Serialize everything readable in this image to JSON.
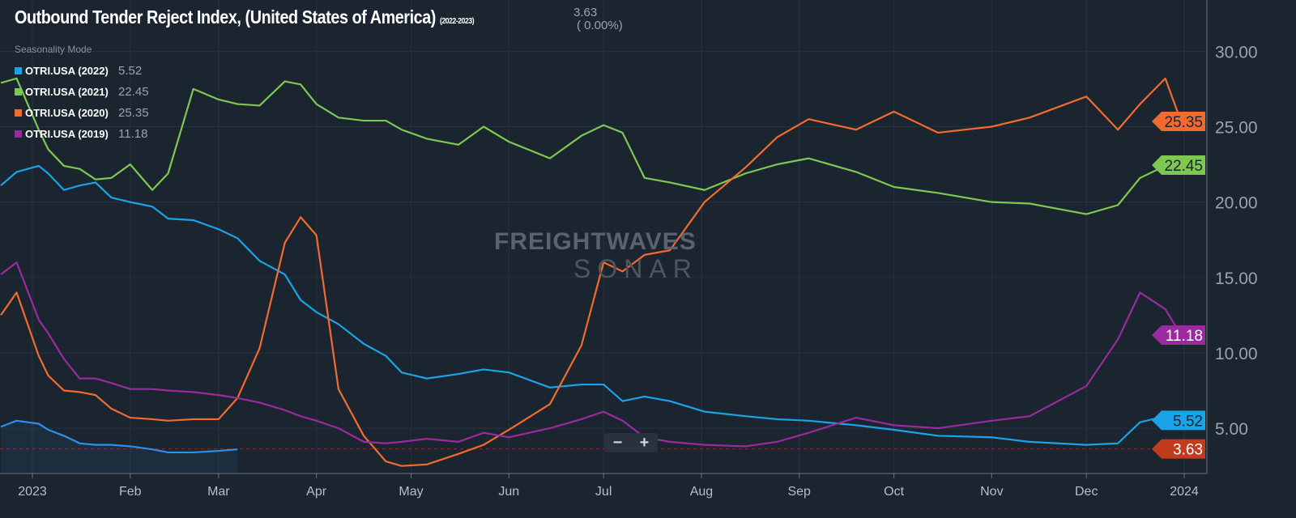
{
  "header": {
    "title": "Outbound Tender Reject Index, (United States of America)",
    "range": "(2022-2023)",
    "current_value": "3.63",
    "change": "( 0.00%)",
    "mode": "Seasonality Mode"
  },
  "legend": [
    {
      "name": "OTRI.USA (2022)",
      "value": "5.52",
      "color": "#1aa3e8"
    },
    {
      "name": "OTRI.USA (2021)",
      "value": "22.45",
      "color": "#7ec850"
    },
    {
      "name": "OTRI.USA (2020)",
      "value": "25.35",
      "color": "#f26b2e"
    },
    {
      "name": "OTRI.USA (2019)",
      "value": "11.18",
      "color": "#9b2a9e"
    }
  ],
  "watermark": {
    "line1": "FREIGHTWAVES",
    "line2": "SONAR"
  },
  "zoom_controls": {
    "minus": "−",
    "plus": "+"
  },
  "chart_data": {
    "type": "line",
    "ylim": [
      2,
      33.4
    ],
    "xlim": [
      "2022-12-20",
      "2024-01-08"
    ],
    "y_ticks": [
      5,
      10,
      15,
      20,
      25,
      30
    ],
    "y_tick_labels": [
      "5.00",
      "10.00",
      "15.00",
      "20.00",
      "25.00",
      "30.00"
    ],
    "x_ticks": [
      "2023-01-01",
      "2023-02-01",
      "2023-03-01",
      "2023-04-01",
      "2023-05-01",
      "2023-06-01",
      "2023-07-01",
      "2023-08-01",
      "2023-09-01",
      "2023-10-01",
      "2023-11-01",
      "2023-12-01",
      "2024-01-01"
    ],
    "x_tick_labels": [
      "2023",
      "Feb",
      "Mar",
      "Apr",
      "May",
      "Jun",
      "Jul",
      "Aug",
      "Sep",
      "Oct",
      "Nov",
      "Dec",
      "2024"
    ],
    "grid": true,
    "y_axis_side": "right",
    "x": [
      "2022-12-22",
      "2022-12-27",
      "2023-01-03",
      "2023-01-06",
      "2023-01-11",
      "2023-01-16",
      "2023-01-21",
      "2023-01-26",
      "2023-02-01",
      "2023-02-08",
      "2023-02-13",
      "2023-02-21",
      "2023-03-01",
      "2023-03-07",
      "2023-03-14",
      "2023-03-22",
      "2023-03-27",
      "2023-04-01",
      "2023-04-08",
      "2023-04-16",
      "2023-04-23",
      "2023-04-28",
      "2023-05-06",
      "2023-05-16",
      "2023-05-24",
      "2023-06-01",
      "2023-06-14",
      "2023-06-24",
      "2023-07-01",
      "2023-07-07",
      "2023-07-14",
      "2023-07-22",
      "2023-08-02",
      "2023-08-15",
      "2023-08-25",
      "2023-09-04",
      "2023-09-19",
      "2023-10-01",
      "2023-10-15",
      "2023-11-01",
      "2023-11-13",
      "2023-12-01",
      "2023-12-11",
      "2023-12-18",
      "2023-12-26",
      "2023-12-31"
    ],
    "series": [
      {
        "name": "OTRI.USA (2022)",
        "color": "#1aa3e8",
        "last": "5.52",
        "values": [
          21.1,
          22.0,
          22.4,
          21.9,
          20.8,
          21.1,
          21.3,
          20.3,
          20.0,
          19.7,
          18.9,
          18.8,
          18.2,
          17.6,
          16.1,
          15.2,
          13.5,
          12.7,
          11.9,
          10.6,
          9.8,
          8.7,
          8.3,
          8.6,
          8.9,
          8.7,
          7.7,
          7.9,
          7.9,
          6.8,
          7.1,
          6.8,
          6.1,
          5.8,
          5.6,
          5.5,
          5.2,
          4.9,
          4.5,
          4.4,
          4.1,
          3.9,
          4.0,
          5.4,
          5.8,
          5.52
        ]
      },
      {
        "name": "OTRI.USA (2021)",
        "color": "#7ec850",
        "last": "22.45",
        "values": [
          27.9,
          28.2,
          24.8,
          23.5,
          22.4,
          22.2,
          21.5,
          21.6,
          22.5,
          20.8,
          21.9,
          27.5,
          26.8,
          26.5,
          26.4,
          28.0,
          27.8,
          26.5,
          25.6,
          25.4,
          25.4,
          24.8,
          24.2,
          23.8,
          25.0,
          24.0,
          22.9,
          24.4,
          25.1,
          24.6,
          21.6,
          21.3,
          20.8,
          21.9,
          22.5,
          22.9,
          22.0,
          21.0,
          20.6,
          20.0,
          19.9,
          19.2,
          19.8,
          21.6,
          22.4,
          22.45
        ]
      },
      {
        "name": "OTRI.USA (2020)",
        "color": "#f26b2e",
        "last": "25.35",
        "values": [
          12.5,
          14.0,
          9.8,
          8.5,
          7.5,
          7.4,
          7.2,
          6.3,
          5.7,
          5.6,
          5.5,
          5.6,
          5.6,
          7.0,
          10.3,
          17.3,
          19.0,
          17.8,
          7.6,
          4.5,
          2.8,
          2.5,
          2.6,
          3.3,
          3.9,
          4.9,
          6.6,
          10.5,
          16.0,
          15.4,
          16.5,
          16.8,
          20.0,
          22.3,
          24.3,
          25.5,
          24.8,
          26.0,
          24.6,
          25.0,
          25.6,
          27.0,
          24.8,
          26.5,
          28.2,
          25.35
        ]
      },
      {
        "name": "OTRI.USA (2019)",
        "color": "#9b2a9e",
        "last": "11.18",
        "values": [
          15.2,
          16.0,
          12.2,
          11.3,
          9.6,
          8.3,
          8.3,
          8.0,
          7.6,
          7.6,
          7.5,
          7.4,
          7.2,
          7.0,
          6.7,
          6.2,
          5.8,
          5.5,
          5.0,
          4.1,
          4.0,
          4.1,
          4.3,
          4.1,
          4.7,
          4.4,
          5.0,
          5.6,
          6.1,
          5.5,
          4.4,
          4.1,
          3.9,
          3.8,
          4.1,
          4.7,
          5.7,
          5.2,
          5.0,
          5.5,
          5.8,
          7.8,
          10.9,
          14.0,
          12.9,
          11.18
        ]
      },
      {
        "color": "#2f8fe8",
        "last": "3.63",
        "area": true,
        "last_color": "#c23b1c",
        "values": [
          5.1,
          5.5,
          5.3,
          4.9,
          4.5,
          4.0,
          3.9,
          3.9,
          3.8,
          3.6,
          3.4,
          3.4,
          3.5,
          3.6,
          null,
          null,
          null,
          null,
          null,
          null,
          null,
          null,
          null,
          null,
          null,
          null,
          null,
          null,
          null,
          null,
          null,
          null,
          null,
          null,
          null,
          null,
          null,
          null,
          null,
          null,
          null,
          null,
          null,
          null,
          null,
          null
        ]
      }
    ]
  }
}
